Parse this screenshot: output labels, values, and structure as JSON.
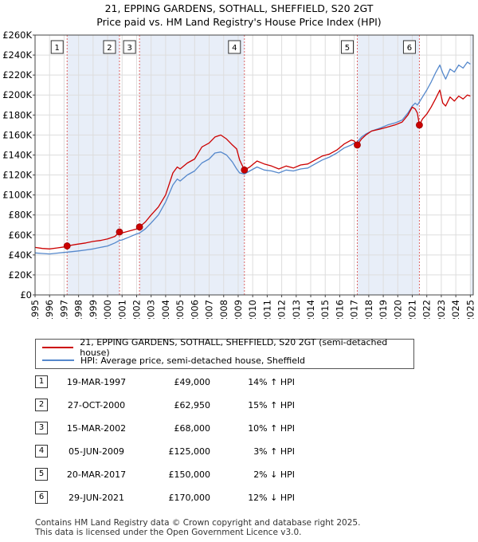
{
  "title": "21, EPPING GARDENS, SOTHALL, SHEFFIELD, S20 2GT",
  "subtitle": "Price paid vs. HM Land Registry's House Price Index (HPI)",
  "colors": {
    "property": "#cc0000",
    "hpi": "#5588cc",
    "shade": "#e8eef8",
    "grid": "#dddddd",
    "vline": "#dd6666"
  },
  "chart_data": {
    "type": "line",
    "x_range": [
      1995,
      2025.2
    ],
    "ylim": [
      0,
      260000
    ],
    "y_ticks": [
      0,
      20000,
      40000,
      60000,
      80000,
      100000,
      120000,
      140000,
      160000,
      180000,
      200000,
      220000,
      240000,
      260000
    ],
    "y_tick_labels": [
      "£0",
      "£20K",
      "£40K",
      "£60K",
      "£80K",
      "£100K",
      "£120K",
      "£140K",
      "£160K",
      "£180K",
      "£200K",
      "£220K",
      "£240K",
      "£260K"
    ],
    "x_ticks": [
      1995,
      1996,
      1997,
      1998,
      1999,
      2000,
      2001,
      2002,
      2003,
      2004,
      2005,
      2006,
      2007,
      2008,
      2009,
      2010,
      2011,
      2012,
      2013,
      2014,
      2015,
      2016,
      2017,
      2018,
      2019,
      2020,
      2021,
      2022,
      2023,
      2024,
      2025
    ],
    "x_tick_labels": [
      "1995",
      "1996",
      "1997",
      "1998",
      "1999",
      "2000",
      "2001",
      "2002",
      "2003",
      "2004",
      "2005",
      "2006",
      "2007",
      "2008",
      "2009",
      "2010",
      "2011",
      "2012",
      "2013",
      "2014",
      "2015",
      "2016",
      "2017",
      "2018",
      "2019",
      "2020",
      "2021",
      "2022",
      "2023",
      "2024",
      "2025"
    ],
    "series": [
      {
        "name": "21, EPPING GARDENS, SOTHALL, SHEFFIELD, S20 2GT (semi-detached house)",
        "color": "#cc0000",
        "points": [
          [
            1995.0,
            47500
          ],
          [
            1995.5,
            46500
          ],
          [
            1996.0,
            46000
          ],
          [
            1996.5,
            47000
          ],
          [
            1997.0,
            48000
          ],
          [
            1997.21,
            49000
          ],
          [
            1997.8,
            50500
          ],
          [
            1998.5,
            52000
          ],
          [
            1999.0,
            53500
          ],
          [
            1999.5,
            54500
          ],
          [
            2000.0,
            56000
          ],
          [
            2000.5,
            58500
          ],
          [
            2000.82,
            62950
          ],
          [
            2001.0,
            62000
          ],
          [
            2001.5,
            64000
          ],
          [
            2002.0,
            66000
          ],
          [
            2002.2,
            68000
          ],
          [
            2002.6,
            73000
          ],
          [
            2003.0,
            80000
          ],
          [
            2003.5,
            88000
          ],
          [
            2004.0,
            100000
          ],
          [
            2004.5,
            122000
          ],
          [
            2004.8,
            128000
          ],
          [
            2005.0,
            126000
          ],
          [
            2005.5,
            132000
          ],
          [
            2006.0,
            136000
          ],
          [
            2006.5,
            148000
          ],
          [
            2007.0,
            152000
          ],
          [
            2007.4,
            158000
          ],
          [
            2007.8,
            160000
          ],
          [
            2008.2,
            156000
          ],
          [
            2008.6,
            150000
          ],
          [
            2008.9,
            146000
          ],
          [
            2009.1,
            135000
          ],
          [
            2009.43,
            125000
          ],
          [
            2009.8,
            128000
          ],
          [
            2010.3,
            134000
          ],
          [
            2010.8,
            131000
          ],
          [
            2011.3,
            129000
          ],
          [
            2011.8,
            126000
          ],
          [
            2012.3,
            129000
          ],
          [
            2012.8,
            127000
          ],
          [
            2013.3,
            130000
          ],
          [
            2013.8,
            131000
          ],
          [
            2014.3,
            135000
          ],
          [
            2014.8,
            139000
          ],
          [
            2015.3,
            141000
          ],
          [
            2015.8,
            145000
          ],
          [
            2016.3,
            151000
          ],
          [
            2016.8,
            155000
          ],
          [
            2017.0,
            154000
          ],
          [
            2017.21,
            150000
          ],
          [
            2017.5,
            156000
          ],
          [
            2017.8,
            160000
          ],
          [
            2018.2,
            164000
          ],
          [
            2018.8,
            166000
          ],
          [
            2019.3,
            168000
          ],
          [
            2019.8,
            170000
          ],
          [
            2020.3,
            173000
          ],
          [
            2020.7,
            180000
          ],
          [
            2021.0,
            188000
          ],
          [
            2021.2,
            186000
          ],
          [
            2021.35,
            182000
          ],
          [
            2021.49,
            170000
          ],
          [
            2021.7,
            176000
          ],
          [
            2022.0,
            181000
          ],
          [
            2022.3,
            188000
          ],
          [
            2022.6,
            196000
          ],
          [
            2022.9,
            205000
          ],
          [
            2023.1,
            192000
          ],
          [
            2023.3,
            189000
          ],
          [
            2023.6,
            198000
          ],
          [
            2023.9,
            194000
          ],
          [
            2024.2,
            199000
          ],
          [
            2024.5,
            196000
          ],
          [
            2024.8,
            200000
          ],
          [
            2025.0,
            199000
          ]
        ]
      },
      {
        "name": "HPI: Average price, semi-detached house, Sheffield",
        "color": "#5588cc",
        "points": [
          [
            1995.0,
            42000
          ],
          [
            1995.5,
            41500
          ],
          [
            1996.0,
            41000
          ],
          [
            1996.5,
            41800
          ],
          [
            1997.0,
            42500
          ],
          [
            1997.5,
            43200
          ],
          [
            1998.0,
            44000
          ],
          [
            1998.5,
            45000
          ],
          [
            1999.0,
            46000
          ],
          [
            1999.5,
            47500
          ],
          [
            2000.0,
            49000
          ],
          [
            2000.5,
            52000
          ],
          [
            2000.82,
            54500
          ],
          [
            2001.0,
            55000
          ],
          [
            2001.5,
            58000
          ],
          [
            2002.0,
            61000
          ],
          [
            2002.2,
            62000
          ],
          [
            2002.6,
            66000
          ],
          [
            2003.0,
            72000
          ],
          [
            2003.5,
            80000
          ],
          [
            2004.0,
            93000
          ],
          [
            2004.5,
            110000
          ],
          [
            2004.8,
            116000
          ],
          [
            2005.0,
            114000
          ],
          [
            2005.5,
            120000
          ],
          [
            2006.0,
            124000
          ],
          [
            2006.5,
            132000
          ],
          [
            2007.0,
            136000
          ],
          [
            2007.4,
            142000
          ],
          [
            2007.8,
            143000
          ],
          [
            2008.2,
            140000
          ],
          [
            2008.6,
            133000
          ],
          [
            2008.9,
            126000
          ],
          [
            2009.1,
            122000
          ],
          [
            2009.43,
            121000
          ],
          [
            2009.8,
            124000
          ],
          [
            2010.3,
            128000
          ],
          [
            2010.8,
            125000
          ],
          [
            2011.3,
            124000
          ],
          [
            2011.8,
            122000
          ],
          [
            2012.3,
            125000
          ],
          [
            2012.8,
            124000
          ],
          [
            2013.3,
            126000
          ],
          [
            2013.8,
            127000
          ],
          [
            2014.3,
            131000
          ],
          [
            2014.8,
            135000
          ],
          [
            2015.3,
            138000
          ],
          [
            2015.8,
            142000
          ],
          [
            2016.3,
            147000
          ],
          [
            2016.8,
            150000
          ],
          [
            2017.0,
            152000
          ],
          [
            2017.21,
            153000
          ],
          [
            2017.5,
            158000
          ],
          [
            2017.8,
            161000
          ],
          [
            2018.2,
            164000
          ],
          [
            2018.8,
            167000
          ],
          [
            2019.3,
            170000
          ],
          [
            2019.8,
            172000
          ],
          [
            2020.3,
            175000
          ],
          [
            2020.7,
            182000
          ],
          [
            2021.0,
            189000
          ],
          [
            2021.2,
            192000
          ],
          [
            2021.35,
            190000
          ],
          [
            2021.49,
            193000
          ],
          [
            2021.7,
            198000
          ],
          [
            2022.0,
            205000
          ],
          [
            2022.3,
            213000
          ],
          [
            2022.6,
            222000
          ],
          [
            2022.9,
            230000
          ],
          [
            2023.1,
            222000
          ],
          [
            2023.3,
            216000
          ],
          [
            2023.6,
            226000
          ],
          [
            2023.9,
            223000
          ],
          [
            2024.2,
            230000
          ],
          [
            2024.5,
            227000
          ],
          [
            2024.8,
            233000
          ],
          [
            2025.0,
            231000
          ]
        ]
      }
    ],
    "sales": [
      {
        "label": "1",
        "x": 1997.21,
        "y": 49000
      },
      {
        "label": "2",
        "x": 2000.82,
        "y": 62950
      },
      {
        "label": "3",
        "x": 2002.2,
        "y": 68000
      },
      {
        "label": "4",
        "x": 2009.43,
        "y": 125000
      },
      {
        "label": "5",
        "x": 2017.21,
        "y": 150000
      },
      {
        "label": "6",
        "x": 2021.49,
        "y": 170000
      }
    ],
    "shaded_periods": [
      [
        1997.21,
        2000.82
      ],
      [
        2002.2,
        2009.43
      ],
      [
        2017.21,
        2021.49
      ],
      [
        2025.0,
        2025.2
      ]
    ]
  },
  "legend": {
    "property_label": "21, EPPING GARDENS, SOTHALL, SHEFFIELD, S20 2GT (semi-detached house)",
    "hpi_label": "HPI: Average price, semi-detached house, Sheffield"
  },
  "transactions": [
    {
      "num": "1",
      "date": "19-MAR-1997",
      "price": "£49,000",
      "hpi": "14% ↑ HPI"
    },
    {
      "num": "2",
      "date": "27-OCT-2000",
      "price": "£62,950",
      "hpi": "15% ↑ HPI"
    },
    {
      "num": "3",
      "date": "15-MAR-2002",
      "price": "£68,000",
      "hpi": "10% ↑ HPI"
    },
    {
      "num": "4",
      "date": "05-JUN-2009",
      "price": "£125,000",
      "hpi": "3% ↑ HPI"
    },
    {
      "num": "5",
      "date": "20-MAR-2017",
      "price": "£150,000",
      "hpi": "2% ↓ HPI"
    },
    {
      "num": "6",
      "date": "29-JUN-2021",
      "price": "£170,000",
      "hpi": "12% ↓ HPI"
    }
  ],
  "footer": {
    "line1": "Contains HM Land Registry data © Crown copyright and database right 2025.",
    "line2": "This data is licensed under the Open Government Licence v3.0."
  }
}
